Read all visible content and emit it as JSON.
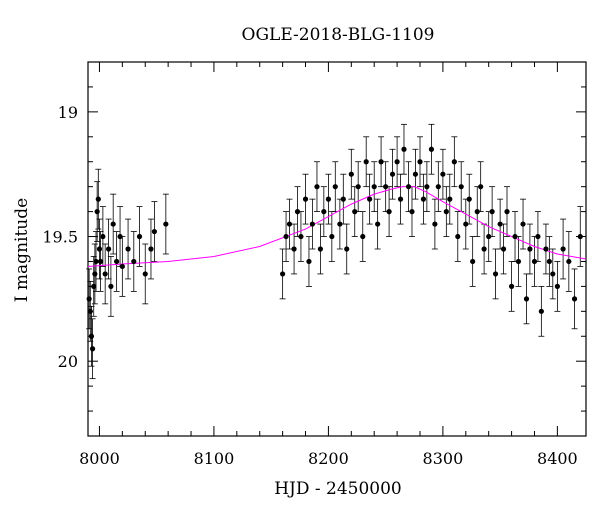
{
  "chart_data": {
    "type": "scatter",
    "title": "OGLE-2018-BLG-1109",
    "xlabel": "HJD - 2450000",
    "ylabel": "I magnitude",
    "xlim": [
      7990,
      8425
    ],
    "ylim": [
      20.3,
      18.8
    ],
    "y_inverted": true,
    "x_ticks": [
      8000,
      8100,
      8200,
      8300,
      8400
    ],
    "y_ticks": [
      19,
      19.5,
      20
    ],
    "grid": false,
    "legend": "none",
    "colors": {
      "points": "#000000",
      "model": "#ff00ff"
    },
    "model_curve": {
      "x": [
        7990,
        8020,
        8060,
        8100,
        8140,
        8180,
        8200,
        8220,
        8240,
        8255,
        8265,
        8275,
        8285,
        8300,
        8320,
        8340,
        8360,
        8380,
        8400,
        8425
      ],
      "y": [
        19.62,
        19.61,
        19.6,
        19.58,
        19.54,
        19.47,
        19.42,
        19.37,
        19.33,
        19.31,
        19.3,
        19.3,
        19.32,
        19.36,
        19.41,
        19.46,
        19.5,
        19.54,
        19.57,
        19.59
      ]
    },
    "series": [
      {
        "x": [
          7991,
          7992,
          7993,
          7994,
          7995,
          7996,
          7997,
          7998,
          7999,
          8000,
          8001,
          8003,
          8005,
          8008,
          8010,
          8012,
          8015,
          8018,
          8020,
          8025,
          8030,
          8035,
          8040,
          8045,
          8048,
          8058,
          8160,
          8163,
          8166,
          8170,
          8173,
          8176,
          8180,
          8183,
          8186,
          8190,
          8193,
          8196,
          8200,
          8203,
          8206,
          8210,
          8213,
          8216,
          8220,
          8223,
          8226,
          8230,
          8233,
          8236,
          8240,
          8243,
          8246,
          8250,
          8253,
          8256,
          8260,
          8263,
          8266,
          8270,
          8273,
          8276,
          8280,
          8283,
          8286,
          8290,
          8293,
          8296,
          8300,
          8303,
          8306,
          8310,
          8313,
          8316,
          8320,
          8323,
          8326,
          8330,
          8333,
          8336,
          8340,
          8343,
          8346,
          8350,
          8353,
          8356,
          8360,
          8363,
          8366,
          8370,
          8373,
          8376,
          8380,
          8383,
          8386,
          8390,
          8393,
          8396,
          8400,
          8405,
          8410,
          8415,
          8420
        ],
        "y": [
          19.75,
          19.8,
          19.9,
          19.95,
          19.7,
          19.65,
          19.6,
          19.4,
          19.35,
          19.55,
          19.6,
          19.5,
          19.65,
          19.55,
          19.7,
          19.45,
          19.6,
          19.5,
          19.62,
          19.55,
          19.6,
          19.5,
          19.65,
          19.55,
          19.48,
          19.45,
          19.65,
          19.5,
          19.45,
          19.55,
          19.4,
          19.5,
          19.35,
          19.6,
          19.45,
          19.3,
          19.55,
          19.4,
          19.35,
          19.5,
          19.3,
          19.45,
          19.35,
          19.55,
          19.25,
          19.4,
          19.3,
          19.5,
          19.2,
          19.35,
          19.3,
          19.45,
          19.2,
          19.3,
          19.4,
          19.25,
          19.2,
          19.35,
          19.15,
          19.3,
          19.4,
          19.25,
          19.2,
          19.35,
          19.3,
          19.15,
          19.45,
          19.3,
          19.25,
          19.4,
          19.35,
          19.2,
          19.5,
          19.3,
          19.45,
          19.35,
          19.6,
          19.4,
          19.3,
          19.55,
          19.5,
          19.4,
          19.65,
          19.45,
          19.55,
          19.4,
          19.7,
          19.5,
          19.6,
          19.45,
          19.75,
          19.55,
          19.6,
          19.5,
          19.8,
          19.55,
          19.6,
          19.65,
          19.7,
          19.55,
          19.6,
          19.75,
          19.5
        ],
        "yerr": [
          0.12,
          0.12,
          0.12,
          0.12,
          0.12,
          0.12,
          0.12,
          0.12,
          0.12,
          0.12,
          0.12,
          0.12,
          0.12,
          0.12,
          0.12,
          0.12,
          0.12,
          0.12,
          0.12,
          0.12,
          0.12,
          0.12,
          0.12,
          0.12,
          0.12,
          0.12,
          0.1,
          0.1,
          0.1,
          0.1,
          0.1,
          0.1,
          0.1,
          0.1,
          0.1,
          0.1,
          0.1,
          0.1,
          0.1,
          0.1,
          0.1,
          0.1,
          0.1,
          0.1,
          0.1,
          0.1,
          0.1,
          0.1,
          0.1,
          0.1,
          0.1,
          0.1,
          0.1,
          0.1,
          0.1,
          0.1,
          0.1,
          0.1,
          0.1,
          0.1,
          0.1,
          0.1,
          0.1,
          0.1,
          0.1,
          0.1,
          0.1,
          0.1,
          0.1,
          0.1,
          0.1,
          0.1,
          0.1,
          0.1,
          0.1,
          0.1,
          0.1,
          0.1,
          0.1,
          0.1,
          0.1,
          0.1,
          0.1,
          0.1,
          0.1,
          0.1,
          0.1,
          0.1,
          0.1,
          0.1,
          0.1,
          0.1,
          0.1,
          0.1,
          0.1,
          0.1,
          0.1,
          0.1,
          0.1,
          0.12,
          0.12,
          0.12,
          0.12
        ]
      }
    ]
  }
}
